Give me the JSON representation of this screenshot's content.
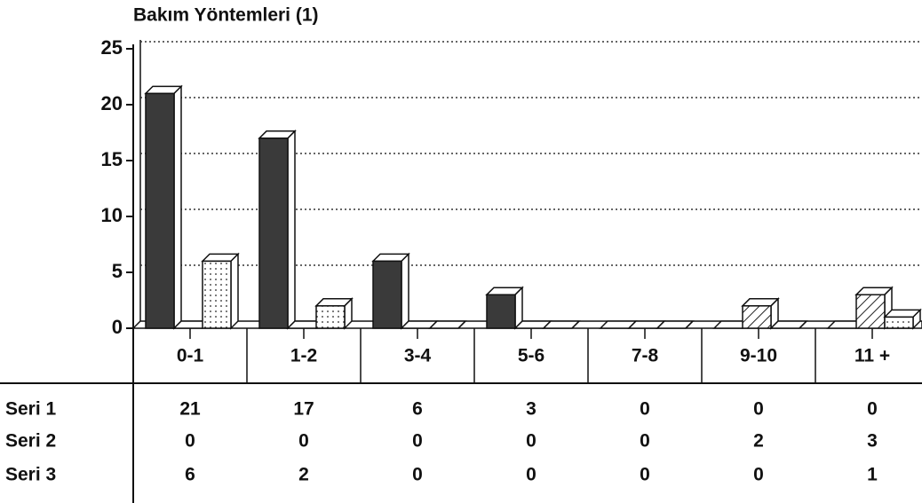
{
  "chart_data": {
    "type": "bar3d",
    "title": "Bakım Yöntemleri (1)",
    "categories": [
      "0-1",
      "1-2",
      "3-4",
      "5-6",
      "7-8",
      "9-10",
      "11 +"
    ],
    "series": [
      {
        "name": "Seri 1",
        "color": "#3a3a3a",
        "pattern": "solid",
        "values": [
          21,
          17,
          6,
          3,
          0,
          0,
          0
        ]
      },
      {
        "name": "Seri 2",
        "color": "#222222",
        "pattern": "hatch",
        "values": [
          0,
          0,
          0,
          0,
          0,
          2,
          3
        ]
      },
      {
        "name": "Seri 3",
        "color": "#222222",
        "pattern": "dots",
        "values": [
          6,
          2,
          0,
          0,
          0,
          0,
          1
        ]
      }
    ],
    "ylim": [
      0,
      25
    ],
    "yticks": [
      0,
      5,
      10,
      15,
      20,
      25
    ],
    "grid": true
  }
}
